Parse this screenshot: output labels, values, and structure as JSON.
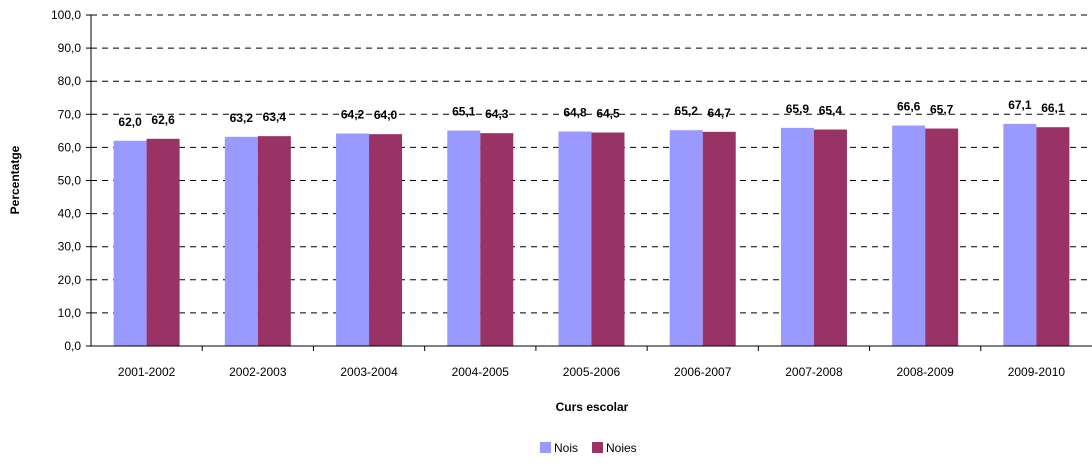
{
  "chart_data": {
    "type": "bar",
    "xlabel": "Curs escolar",
    "ylabel": "Percentatge",
    "ylim": [
      0,
      100
    ],
    "y_ticks": [
      "0,0",
      "10,0",
      "20,0",
      "30,0",
      "40,0",
      "50,0",
      "60,0",
      "70,0",
      "80,0",
      "90,0",
      "100,0"
    ],
    "categories": [
      "2001-2002",
      "2002-2003",
      "2003-2004",
      "2004-2005",
      "2005-2006",
      "2006-2007",
      "2007-2008",
      "2008-2009",
      "2009-2010"
    ],
    "series": [
      {
        "name": "Nois",
        "color": "#9999ff",
        "values": [
          62.0,
          63.2,
          64.2,
          65.1,
          64.8,
          65.2,
          65.9,
          66.6,
          67.1
        ],
        "labels": [
          "62,0",
          "63,2",
          "64,2",
          "65,1",
          "64,8",
          "65,2",
          "65,9",
          "66,6",
          "67,1"
        ]
      },
      {
        "name": "Noies",
        "color": "#993366",
        "values": [
          62.6,
          63.4,
          64.0,
          64.3,
          64.5,
          64.7,
          65.4,
          65.7,
          66.1
        ],
        "labels": [
          "62,6",
          "63,4",
          "64,0",
          "64,3",
          "64,5",
          "64,7",
          "65,4",
          "65,7",
          "66,1"
        ]
      }
    ],
    "grid": true,
    "grid_style": "dashed",
    "legend_position": "bottom-center"
  }
}
